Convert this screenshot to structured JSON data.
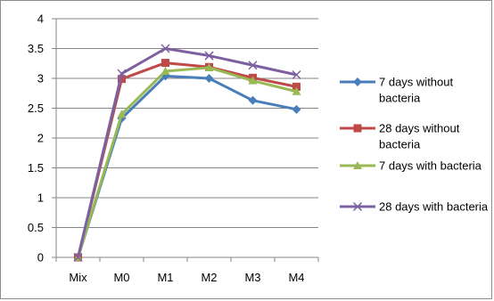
{
  "chart_data": {
    "type": "line",
    "title": "",
    "xlabel": "",
    "ylabel": "",
    "categories": [
      "Mix",
      "M0",
      "M1",
      "M2",
      "M3",
      "M4"
    ],
    "ylim": [
      0,
      4
    ],
    "yticks": [
      "0",
      "0.5",
      "1",
      "1.5",
      "2",
      "2.5",
      "3",
      "3.5",
      "4"
    ],
    "grid": true,
    "legend_position": "right",
    "series": [
      {
        "name": "7 days without bacteria",
        "legend_lines": [
          "7 days without",
          "bacteria"
        ],
        "color": "#4a7ebb",
        "marker": "diamond",
        "values": [
          0,
          2.33,
          3.04,
          3.0,
          2.63,
          2.48
        ]
      },
      {
        "name": "28 days without bacteria",
        "legend_lines": [
          "28 days without",
          "bacteria"
        ],
        "color": "#be4b48",
        "marker": "square",
        "values": [
          0,
          2.99,
          3.26,
          3.19,
          3.01,
          2.86
        ]
      },
      {
        "name": "7 days with bacteria",
        "legend_lines": [
          "7 days with bacteria"
        ],
        "color": "#98b954",
        "marker": "triangle",
        "values": [
          0,
          2.4,
          3.12,
          3.18,
          2.96,
          2.78
        ]
      },
      {
        "name": "28 days with bacteria",
        "legend_lines": [
          "28 days with bacteria"
        ],
        "color": "#7d60a0",
        "marker": "x",
        "values": [
          0,
          3.08,
          3.5,
          3.38,
          3.22,
          3.06
        ]
      }
    ]
  }
}
